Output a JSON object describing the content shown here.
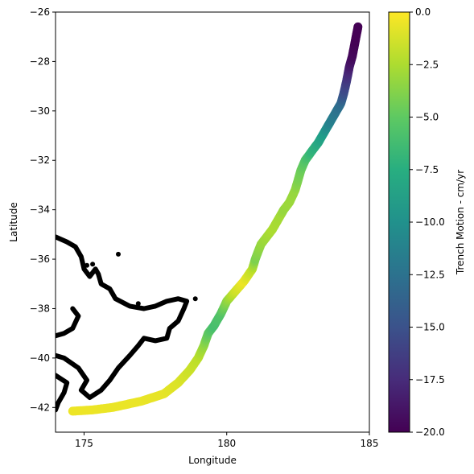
{
  "chart_data": {
    "type": "scatter",
    "xlabel": "Longitude",
    "ylabel": "Latitude",
    "xlim": [
      174,
      185
    ],
    "ylim": [
      -43,
      -26
    ],
    "x_ticks": [
      175,
      180,
      185
    ],
    "y_ticks": [
      -26,
      -28,
      -30,
      -32,
      -34,
      -36,
      -38,
      -40,
      -42
    ],
    "colorbar": {
      "label": "Trench Motion - cm/yr",
      "colormap": "viridis",
      "range": [
        -20,
        0
      ],
      "ticks": [
        0.0,
        -2.5,
        -5.0,
        -7.5,
        -10.0,
        -12.5,
        -15.0,
        -17.5,
        -20.0
      ],
      "tick_labels": [
        "0.0",
        "−2.5",
        "−5.0",
        "−7.5",
        "−10.0",
        "−12.5",
        "−15.0",
        "−17.5",
        "−20.0"
      ]
    },
    "trench": [
      [
        174.6,
        -42.15,
        -0.5
      ],
      [
        175.3,
        -42.1,
        -0.5
      ],
      [
        176.0,
        -42.0,
        -0.6
      ],
      [
        177.0,
        -41.75,
        -0.6
      ],
      [
        177.8,
        -41.45,
        -0.7
      ],
      [
        178.3,
        -41.0,
        -1.0
      ],
      [
        178.7,
        -40.5,
        -1.5
      ],
      [
        179.0,
        -40.0,
        -2.0
      ],
      [
        179.2,
        -39.5,
        -3.2
      ],
      [
        179.35,
        -39.0,
        -5.0
      ],
      [
        179.55,
        -38.7,
        -6.0
      ],
      [
        179.8,
        -38.2,
        -5.5
      ],
      [
        180.0,
        -37.7,
        -3.5
      ],
      [
        180.3,
        -37.3,
        -1.5
      ],
      [
        180.6,
        -36.9,
        -0.5
      ],
      [
        180.9,
        -36.4,
        -2.0
      ],
      [
        181.0,
        -36.0,
        -4.0
      ],
      [
        181.2,
        -35.4,
        -3.2
      ],
      [
        181.6,
        -34.8,
        -2.5
      ],
      [
        181.9,
        -34.2,
        -2.8
      ],
      [
        182.0,
        -34.0,
        -3.2
      ],
      [
        182.2,
        -33.7,
        -3.0
      ],
      [
        182.4,
        -33.2,
        -3.2
      ],
      [
        182.5,
        -32.8,
        -4.0
      ],
      [
        182.6,
        -32.4,
        -4.5
      ],
      [
        182.75,
        -32.0,
        -5.5
      ],
      [
        183.0,
        -31.6,
        -7.0
      ],
      [
        183.2,
        -31.3,
        -8.0
      ],
      [
        183.4,
        -30.9,
        -9.0
      ],
      [
        183.6,
        -30.5,
        -11.0
      ],
      [
        183.8,
        -30.1,
        -12.0
      ],
      [
        184.0,
        -29.7,
        -13.0
      ],
      [
        184.1,
        -29.3,
        -15.0
      ],
      [
        184.2,
        -28.8,
        -16.5
      ],
      [
        184.3,
        -28.2,
        -18.5
      ],
      [
        184.4,
        -27.8,
        -19.5
      ],
      [
        184.5,
        -27.2,
        -20.0
      ],
      [
        184.6,
        -26.6,
        -20.0
      ]
    ],
    "coastline": [
      [
        [
          174.0,
          -35.1
        ],
        [
          174.4,
          -35.3
        ],
        [
          174.7,
          -35.5
        ],
        [
          174.9,
          -35.9
        ],
        [
          175.0,
          -36.4
        ],
        [
          175.2,
          -36.7
        ],
        [
          175.4,
          -36.4
        ],
        [
          175.5,
          -36.6
        ],
        [
          175.6,
          -37.0
        ],
        [
          175.9,
          -37.2
        ],
        [
          176.1,
          -37.6
        ],
        [
          176.6,
          -37.9
        ],
        [
          177.1,
          -38.0
        ],
        [
          177.5,
          -37.9
        ],
        [
          177.9,
          -37.7
        ],
        [
          178.3,
          -37.6
        ],
        [
          178.6,
          -37.7
        ],
        [
          178.5,
          -38.0
        ],
        [
          178.3,
          -38.5
        ],
        [
          178.0,
          -38.8
        ],
        [
          177.9,
          -39.2
        ],
        [
          177.5,
          -39.3
        ],
        [
          177.1,
          -39.2
        ],
        [
          176.9,
          -39.5
        ],
        [
          176.6,
          -39.9
        ],
        [
          176.2,
          -40.4
        ],
        [
          175.9,
          -40.9
        ],
        [
          175.6,
          -41.3
        ],
        [
          175.2,
          -41.6
        ],
        [
          174.9,
          -41.3
        ],
        [
          175.1,
          -40.9
        ],
        [
          174.8,
          -40.4
        ],
        [
          174.3,
          -40.0
        ],
        [
          174.0,
          -39.9
        ]
      ],
      [
        [
          174.6,
          -38.0
        ],
        [
          174.8,
          -38.3
        ],
        [
          174.6,
          -38.8
        ],
        [
          174.3,
          -39.0
        ],
        [
          174.0,
          -39.1
        ]
      ],
      [
        [
          174.0,
          -40.7
        ],
        [
          174.4,
          -41.0
        ],
        [
          174.3,
          -41.4
        ],
        [
          174.1,
          -41.8
        ],
        [
          174.0,
          -42.1
        ]
      ]
    ],
    "islands": [
      [
        175.3,
        -36.2
      ],
      [
        175.1,
        -36.25
      ],
      [
        176.2,
        -35.8
      ],
      [
        176.9,
        -37.8
      ],
      [
        178.9,
        -37.6
      ]
    ]
  }
}
